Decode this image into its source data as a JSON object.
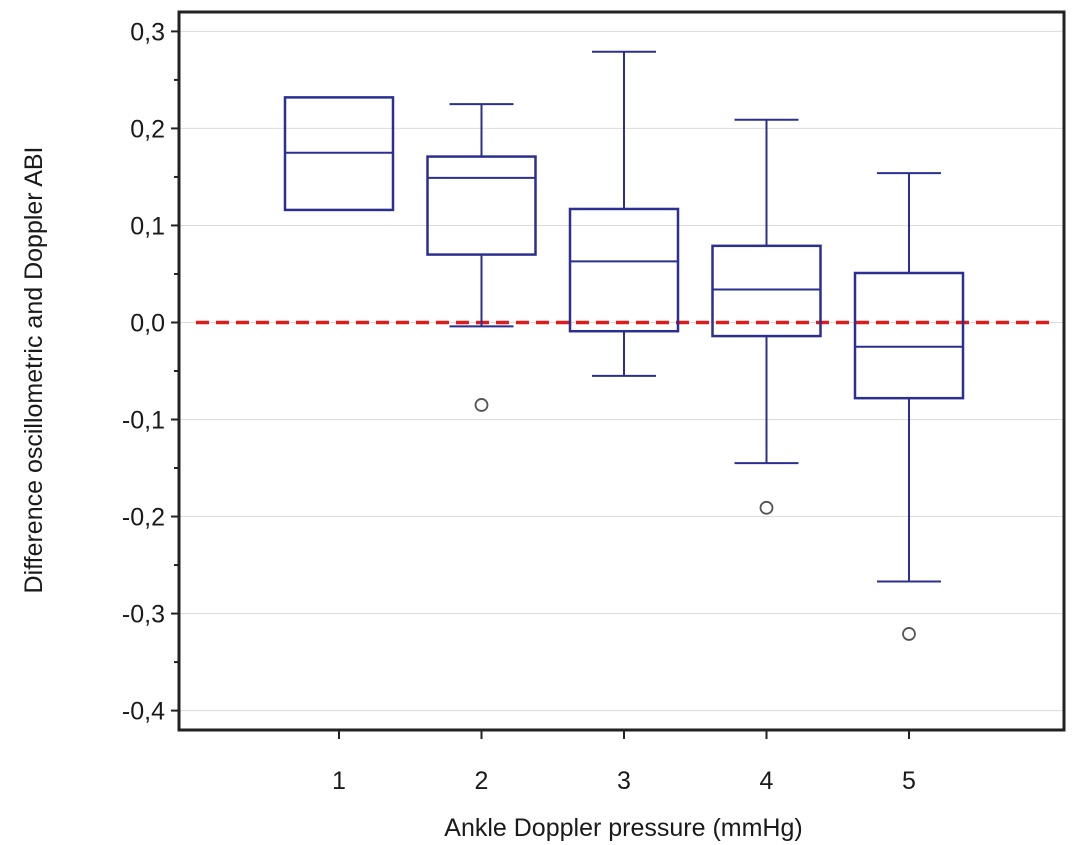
{
  "chart_data": {
    "type": "box",
    "xlabel": "Ankle Doppler pressure (mmHg)",
    "ylabel": "Difference oscillometric and Doppler ABI",
    "ylim": [
      -0.42,
      0.32
    ],
    "y_ticks": [
      -0.4,
      -0.3,
      -0.2,
      -0.1,
      0.0,
      0.1,
      0.2,
      0.3
    ],
    "y_tick_labels": [
      "-0,4",
      "-0,3",
      "-0,2",
      "-0,1",
      "0,0",
      "0,1",
      "0,2",
      "0,3"
    ],
    "categories": [
      "1",
      "2",
      "3",
      "4",
      "5"
    ],
    "grid": "horizontal",
    "reference_line": {
      "y": 0.0,
      "style": "dashed",
      "color": "#e01b1b"
    },
    "box_color": "#2b2f8f",
    "outlier_color": "#555555",
    "boxes": [
      {
        "category": "1",
        "whisker_low": 0.116,
        "q1": 0.116,
        "median": 0.175,
        "q3": 0.232,
        "whisker_high": 0.232,
        "outliers": []
      },
      {
        "category": "2",
        "whisker_low": -0.004,
        "q1": 0.07,
        "median": 0.149,
        "q3": 0.171,
        "whisker_high": 0.225,
        "outliers": [
          -0.085
        ]
      },
      {
        "category": "3",
        "whisker_low": -0.055,
        "q1": -0.009,
        "median": 0.063,
        "q3": 0.117,
        "whisker_high": 0.279,
        "outliers": []
      },
      {
        "category": "4",
        "whisker_low": -0.145,
        "q1": -0.014,
        "median": 0.034,
        "q3": 0.079,
        "whisker_high": 0.209,
        "outliers": [
          -0.191
        ]
      },
      {
        "category": "5",
        "whisker_low": -0.267,
        "q1": -0.078,
        "median": -0.025,
        "q3": 0.051,
        "whisker_high": 0.154,
        "outliers": [
          -0.321
        ]
      }
    ]
  }
}
